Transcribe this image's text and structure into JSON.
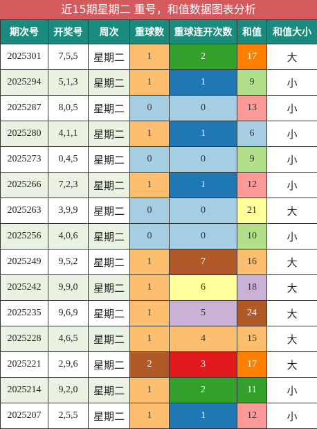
{
  "title": "近15期星期二 重号，和值数据图表分析",
  "headers": [
    "期次号",
    "开奖号",
    "周次",
    "重球数",
    "重球连开次数",
    "和值",
    "和值大小"
  ],
  "colors": {
    "header_bg": "#1a8c7f",
    "title_bg": "#d45a5e",
    "orange": "#fdbf6f",
    "light_blue": "#a6cee3",
    "green": "#33a02c",
    "blue": "#1f78b4",
    "brown": "#b15928",
    "yellow": "#ffff99",
    "lavender": "#cab2d6",
    "red": "#e31a1c",
    "dark_orange": "#ff7f00",
    "light_green": "#b2df8a",
    "pink": "#fb9a99"
  },
  "rows": [
    {
      "issue": "2025301",
      "numbers": "7,5,5",
      "weekday": "星期二",
      "repeat": "1",
      "streak": "2",
      "sum": "17",
      "size": "大",
      "repeat_color": "#fdbf6f",
      "streak_color": "#33a02c",
      "sum_color": "#ff7f00",
      "repeat_text": "#333",
      "streak_text": "#fff",
      "sum_text": "#fff"
    },
    {
      "issue": "2025294",
      "numbers": "5,1,3",
      "weekday": "星期二",
      "repeat": "1",
      "streak": "1",
      "sum": "9",
      "size": "小",
      "repeat_color": "#fdbf6f",
      "streak_color": "#1f78b4",
      "sum_color": "#b2df8a",
      "repeat_text": "#333",
      "streak_text": "#fff",
      "sum_text": "#333"
    },
    {
      "issue": "2025287",
      "numbers": "8,0,5",
      "weekday": "星期二",
      "repeat": "0",
      "streak": "0",
      "sum": "13",
      "size": "小",
      "repeat_color": "#a6cee3",
      "streak_color": "#a6cee3",
      "sum_color": "#fb9a99",
      "repeat_text": "#333",
      "streak_text": "#333",
      "sum_text": "#333"
    },
    {
      "issue": "2025280",
      "numbers": "4,1,1",
      "weekday": "星期二",
      "repeat": "1",
      "streak": "1",
      "sum": "6",
      "size": "小",
      "repeat_color": "#fdbf6f",
      "streak_color": "#1f78b4",
      "sum_color": "#a6cee3",
      "repeat_text": "#333",
      "streak_text": "#fff",
      "sum_text": "#333"
    },
    {
      "issue": "2025273",
      "numbers": "0,4,5",
      "weekday": "星期二",
      "repeat": "0",
      "streak": "0",
      "sum": "9",
      "size": "小",
      "repeat_color": "#a6cee3",
      "streak_color": "#a6cee3",
      "sum_color": "#b2df8a",
      "repeat_text": "#333",
      "streak_text": "#333",
      "sum_text": "#333"
    },
    {
      "issue": "2025266",
      "numbers": "7,2,3",
      "weekday": "星期二",
      "repeat": "1",
      "streak": "1",
      "sum": "12",
      "size": "小",
      "repeat_color": "#fdbf6f",
      "streak_color": "#1f78b4",
      "sum_color": "#fb9a99",
      "repeat_text": "#333",
      "streak_text": "#fff",
      "sum_text": "#333"
    },
    {
      "issue": "2025263",
      "numbers": "3,9,9",
      "weekday": "星期二",
      "repeat": "0",
      "streak": "0",
      "sum": "21",
      "size": "大",
      "repeat_color": "#a6cee3",
      "streak_color": "#a6cee3",
      "sum_color": "#ffff99",
      "repeat_text": "#333",
      "streak_text": "#333",
      "sum_text": "#333"
    },
    {
      "issue": "2025256",
      "numbers": "4,0,6",
      "weekday": "星期二",
      "repeat": "0",
      "streak": "0",
      "sum": "10",
      "size": "小",
      "repeat_color": "#a6cee3",
      "streak_color": "#a6cee3",
      "sum_color": "#b2df8a",
      "repeat_text": "#333",
      "streak_text": "#333",
      "sum_text": "#333"
    },
    {
      "issue": "2025249",
      "numbers": "9,5,2",
      "weekday": "星期二",
      "repeat": "1",
      "streak": "7",
      "sum": "16",
      "size": "大",
      "repeat_color": "#fdbf6f",
      "streak_color": "#b15928",
      "sum_color": "#fdbf6f",
      "repeat_text": "#333",
      "streak_text": "#fff",
      "sum_text": "#333"
    },
    {
      "issue": "2025242",
      "numbers": "9,9,0",
      "weekday": "星期二",
      "repeat": "1",
      "streak": "6",
      "sum": "18",
      "size": "大",
      "repeat_color": "#fdbf6f",
      "streak_color": "#ffff99",
      "sum_color": "#cab2d6",
      "repeat_text": "#333",
      "streak_text": "#333",
      "sum_text": "#333"
    },
    {
      "issue": "2025235",
      "numbers": "9,6,9",
      "weekday": "星期二",
      "repeat": "1",
      "streak": "5",
      "sum": "24",
      "size": "大",
      "repeat_color": "#fdbf6f",
      "streak_color": "#cab2d6",
      "sum_color": "#b15928",
      "repeat_text": "#333",
      "streak_text": "#333",
      "sum_text": "#fff"
    },
    {
      "issue": "2025228",
      "numbers": "4,6,5",
      "weekday": "星期二",
      "repeat": "1",
      "streak": "4",
      "sum": "15",
      "size": "大",
      "repeat_color": "#fdbf6f",
      "streak_color": "#fdbf6f",
      "sum_color": "#fdbf6f",
      "repeat_text": "#333",
      "streak_text": "#333",
      "sum_text": "#333"
    },
    {
      "issue": "2025221",
      "numbers": "2,9,6",
      "weekday": "星期二",
      "repeat": "2",
      "streak": "3",
      "sum": "17",
      "size": "大",
      "repeat_color": "#b15928",
      "streak_color": "#e31a1c",
      "sum_color": "#ff7f00",
      "repeat_text": "#fff",
      "streak_text": "#fff",
      "sum_text": "#fff"
    },
    {
      "issue": "2025214",
      "numbers": "9,2,0",
      "weekday": "星期二",
      "repeat": "1",
      "streak": "2",
      "sum": "11",
      "size": "小",
      "repeat_color": "#fdbf6f",
      "streak_color": "#33a02c",
      "sum_color": "#33a02c",
      "repeat_text": "#333",
      "streak_text": "#fff",
      "sum_text": "#fff"
    },
    {
      "issue": "2025207",
      "numbers": "2,5,5",
      "weekday": "星期二",
      "repeat": "1",
      "streak": "1",
      "sum": "12",
      "size": "小",
      "repeat_color": "#fdbf6f",
      "streak_color": "#1f78b4",
      "sum_color": "#fb9a99",
      "repeat_text": "#333",
      "streak_text": "#fff",
      "sum_text": "#333"
    }
  ]
}
